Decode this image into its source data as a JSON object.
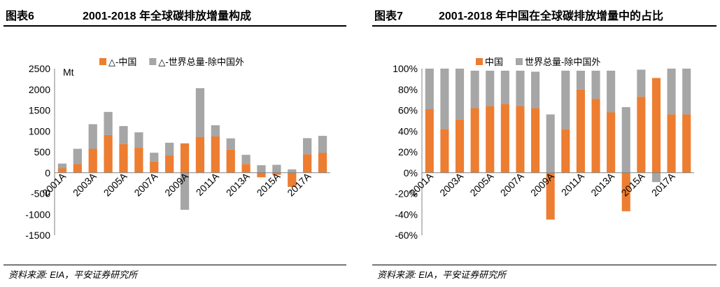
{
  "colors": {
    "china": "#ED7D31",
    "rest": "#A6A6A6",
    "axis": "#808080"
  },
  "chart_data": [
    {
      "type": "bar",
      "stacked": true,
      "figure_label": "图表6",
      "title": "2001-2018 年全球碳排放增量构成",
      "unit_label": "Mt",
      "categories": [
        "2001A",
        "2002A",
        "2003A",
        "2004A",
        "2005A",
        "2006A",
        "2007A",
        "2008A",
        "2009A",
        "2010A",
        "2011A",
        "2012A",
        "2013A",
        "2014A",
        "2015A",
        "2016A",
        "2017A",
        "2018A"
      ],
      "x_tick_labels": [
        "2001A",
        "2003A",
        "2005A",
        "2007A",
        "2009A",
        "2011A",
        "2013A",
        "2015A",
        "2017A"
      ],
      "y_ticks": [
        2500,
        2000,
        1500,
        1000,
        500,
        0,
        -500,
        -1000,
        -1500
      ],
      "ylim": [
        -1500,
        2500
      ],
      "legend": [
        "△-中国",
        "△-世界总量-除中国外"
      ],
      "series": [
        {
          "name": "△-中国",
          "values": [
            105,
            205,
            575,
            905,
            690,
            600,
            270,
            415,
            705,
            860,
            870,
            555,
            210,
            -110,
            -50,
            -340,
            440,
            475
          ]
        },
        {
          "name": "△-世界总量-除中国外",
          "values": [
            115,
            370,
            590,
            555,
            430,
            370,
            210,
            305,
            -890,
            1170,
            270,
            270,
            220,
            180,
            190,
            80,
            390,
            410
          ]
        }
      ],
      "source": "资料来源: EIA，平安证券研究所"
    },
    {
      "type": "bar",
      "stacked": true,
      "figure_label": "图表7",
      "title": "2001-2018 年中国在全球碳排放增量中的占比",
      "categories": [
        "2001A",
        "2002A",
        "2003A",
        "2004A",
        "2005A",
        "2006A",
        "2007A",
        "2008A",
        "2009A",
        "2010A",
        "2011A",
        "2012A",
        "2013A",
        "2014A",
        "2015A",
        "2016A",
        "2017A",
        "2018A"
      ],
      "x_tick_labels": [
        "2001A",
        "2003A",
        "2005A",
        "2007A",
        "2009A",
        "2011A",
        "2013A",
        "2015A",
        "2017A"
      ],
      "y_tick_labels": [
        "100%",
        "80%",
        "60%",
        "40%",
        "20%",
        "0%",
        "-20%",
        "-40%",
        "-60%"
      ],
      "y_ticks": [
        100,
        80,
        60,
        40,
        20,
        0,
        -20,
        -40,
        -60
      ],
      "ylim": [
        -60,
        100
      ],
      "legend": [
        "中国",
        "世界总量-除中国外"
      ],
      "series": [
        {
          "name": "中国",
          "values": [
            61,
            42,
            51,
            62,
            64,
            66,
            64,
            62,
            -45,
            42,
            80,
            71,
            58,
            -37,
            73,
            91,
            56,
            56
          ]
        },
        {
          "name": "世界总量-除中国外",
          "values": [
            39,
            58,
            49,
            36,
            34,
            32,
            34,
            35,
            56,
            56,
            18,
            27,
            40,
            63,
            26,
            -9,
            44,
            44
          ]
        }
      ],
      "source": "资料来源: EIA，平安证券研究所"
    }
  ]
}
